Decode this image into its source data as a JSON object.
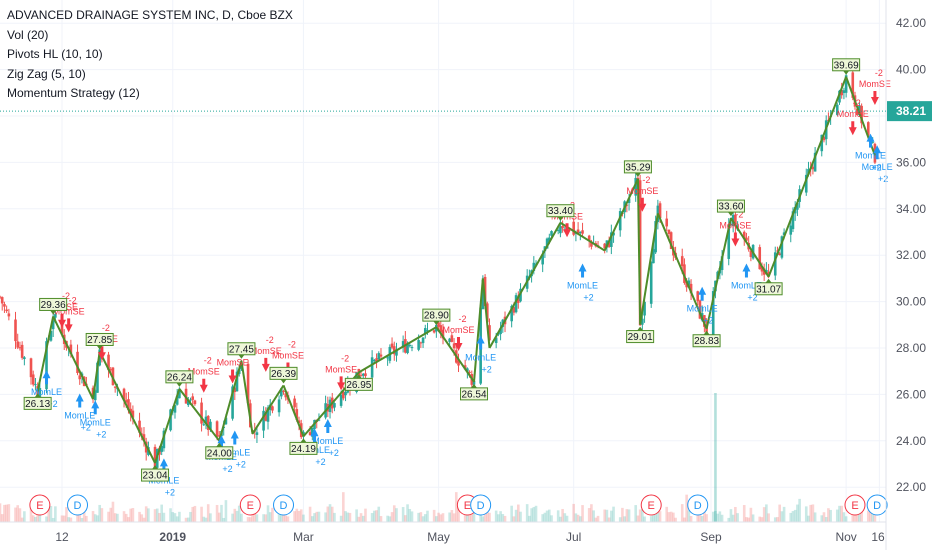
{
  "legend": {
    "title": "ADVANCED DRAINAGE SYSTEM INC, D, Cboe BZX",
    "studies": [
      "Vol (20)",
      "Pivots HL (10, 10)",
      "Zig Zag (5, 10)",
      "Momentum Strategy (12)"
    ]
  },
  "colors": {
    "up": "#26a69a",
    "down": "#ef5350",
    "zigzag": "#4e8c2a",
    "pivot_bg": "#eef7d8",
    "pivot_border": "#4e8c2a",
    "long": "#2196f3",
    "short": "#f23645",
    "price_line": "#26a69a",
    "axis_text": "#50535e",
    "grid": "#f0f3fa"
  },
  "chart_data": {
    "type": "candlestick",
    "symbol": "ADVANCED DRAINAGE SYSTEM INC",
    "interval": "D",
    "exchange": "Cboe BZX",
    "ylim": [
      20.5,
      43
    ],
    "y_ticks": [
      "22.00",
      "24.00",
      "26.00",
      "28.00",
      "30.00",
      "32.00",
      "34.00",
      "36.00",
      "38.00",
      "40.00",
      "42.00"
    ],
    "x_ticks": [
      "12",
      "2019",
      "Mar",
      "May",
      "Jul",
      "Sep",
      "Nov",
      "16"
    ],
    "last_price": "38.21",
    "zigzag": [
      {
        "date": "2018-11-01",
        "value": 26.13
      },
      {
        "date": "2018-11-08",
        "value": 29.36
      },
      {
        "date": "2018-11-26",
        "value": 25.8
      },
      {
        "date": "2018-11-29",
        "value": 27.85
      },
      {
        "date": "2018-12-24",
        "value": 23.04
      },
      {
        "date": "2019-01-04",
        "value": 26.24
      },
      {
        "date": "2019-01-22",
        "value": 24.0
      },
      {
        "date": "2019-02-01",
        "value": 27.45
      },
      {
        "date": "2019-02-06",
        "value": 24.3
      },
      {
        "date": "2019-02-20",
        "value": 26.39
      },
      {
        "date": "2019-03-01",
        "value": 24.19
      },
      {
        "date": "2019-03-26",
        "value": 26.95
      },
      {
        "date": "2019-04-30",
        "value": 28.9
      },
      {
        "date": "2019-05-17",
        "value": 26.54
      },
      {
        "date": "2019-05-21",
        "value": 31.0
      },
      {
        "date": "2019-05-24",
        "value": 28.0
      },
      {
        "date": "2019-06-25",
        "value": 33.4
      },
      {
        "date": "2019-07-15",
        "value": 32.2
      },
      {
        "date": "2019-07-30",
        "value": 35.29
      },
      {
        "date": "2019-07-31",
        "value": 29.01
      },
      {
        "date": "2019-08-08",
        "value": 33.8
      },
      {
        "date": "2019-08-30",
        "value": 28.83
      },
      {
        "date": "2019-09-10",
        "value": 33.6
      },
      {
        "date": "2019-09-27",
        "value": 31.07
      },
      {
        "date": "2019-11-01",
        "value": 39.69
      },
      {
        "date": "2019-11-14",
        "value": 36.3
      }
    ],
    "pivot_labels": [
      {
        "date": "2018-11-01",
        "value": 26.13,
        "text": "26.13",
        "pos": "below"
      },
      {
        "date": "2018-11-08",
        "value": 29.36,
        "text": "29.36",
        "pos": "above"
      },
      {
        "date": "2018-11-29",
        "value": 27.85,
        "text": "27.85",
        "pos": "above"
      },
      {
        "date": "2018-12-24",
        "value": 23.04,
        "text": "23.04",
        "pos": "below"
      },
      {
        "date": "2019-01-04",
        "value": 26.24,
        "text": "26.24",
        "pos": "above"
      },
      {
        "date": "2019-01-22",
        "value": 24.0,
        "text": "24.00",
        "pos": "below"
      },
      {
        "date": "2019-02-01",
        "value": 27.45,
        "text": "27.45",
        "pos": "above"
      },
      {
        "date": "2019-02-20",
        "value": 26.39,
        "text": "26.39",
        "pos": "above"
      },
      {
        "date": "2019-03-01",
        "value": 24.19,
        "text": "24.19",
        "pos": "below"
      },
      {
        "date": "2019-03-26",
        "value": 26.95,
        "text": "26.95",
        "pos": "below"
      },
      {
        "date": "2019-04-30",
        "value": 28.9,
        "text": "28.90",
        "pos": "above"
      },
      {
        "date": "2019-05-17",
        "value": 26.54,
        "text": "26.54",
        "pos": "below"
      },
      {
        "date": "2019-06-25",
        "value": 33.4,
        "text": "33.40",
        "pos": "above"
      },
      {
        "date": "2019-07-30",
        "value": 35.29,
        "text": "35.29",
        "pos": "above"
      },
      {
        "date": "2019-07-31",
        "value": 29.01,
        "text": "29.01",
        "pos": "below"
      },
      {
        "date": "2019-08-30",
        "value": 28.83,
        "text": "28.83",
        "pos": "below"
      },
      {
        "date": "2019-09-10",
        "value": 33.6,
        "text": "33.60",
        "pos": "above"
      },
      {
        "date": "2019-09-27",
        "value": 31.07,
        "text": "31.07",
        "pos": "below"
      },
      {
        "date": "2019-11-01",
        "value": 39.69,
        "text": "39.69",
        "pos": "above"
      }
    ],
    "signals": [
      {
        "type": "long",
        "date": "2018-11-05",
        "value": 27.3,
        "label": "MomLE",
        "qty": "+2"
      },
      {
        "type": "short",
        "date": "2018-11-12",
        "value": 28.7,
        "label": "MomSE",
        "qty": "-2"
      },
      {
        "type": "short",
        "date": "2018-11-15",
        "value": 28.5,
        "label": "MomSE",
        "qty": "-2"
      },
      {
        "type": "long",
        "date": "2018-11-20",
        "value": 26.3,
        "label": "MomLE",
        "qty": "+2"
      },
      {
        "type": "long",
        "date": "2018-11-27",
        "value": 26.0,
        "label": "MomLE",
        "qty": "+2"
      },
      {
        "type": "short",
        "date": "2018-11-30",
        "value": 27.3,
        "label": "MomSE",
        "qty": "-2"
      },
      {
        "type": "long",
        "date": "2018-12-28",
        "value": 23.5,
        "label": "MomLE",
        "qty": "+2"
      },
      {
        "type": "short",
        "date": "2019-01-15",
        "value": 25.9,
        "label": "MomSE",
        "qty": "-2"
      },
      {
        "type": "long",
        "date": "2019-01-23",
        "value": 24.5,
        "label": "MomLE",
        "qty": "+2"
      },
      {
        "type": "short",
        "date": "2019-01-28",
        "value": 26.3,
        "label": "MomSE",
        "qty": "-2"
      },
      {
        "type": "long",
        "date": "2019-01-29",
        "value": 24.7,
        "label": "MomLE",
        "qty": "+2"
      },
      {
        "type": "short",
        "date": "2019-02-12",
        "value": 26.8,
        "label": "MomSE",
        "qty": "-2"
      },
      {
        "type": "short",
        "date": "2019-02-22",
        "value": 26.6,
        "label": "MomSE",
        "qty": "-2"
      },
      {
        "type": "long",
        "date": "2019-03-06",
        "value": 24.8,
        "label": "MomLE",
        "qty": "+2"
      },
      {
        "type": "long",
        "date": "2019-03-12",
        "value": 25.2,
        "label": "MomLE",
        "qty": "+2"
      },
      {
        "type": "short",
        "date": "2019-03-18",
        "value": 26.0,
        "label": "MomSE",
        "qty": "-2"
      },
      {
        "type": "short",
        "date": "2019-05-10",
        "value": 27.7,
        "label": "MomSE",
        "qty": "-2"
      },
      {
        "type": "long",
        "date": "2019-05-20",
        "value": 28.8,
        "label": "MomLE",
        "qty": "+2"
      },
      {
        "type": "short",
        "date": "2019-06-28",
        "value": 32.6,
        "label": "MomSE",
        "qty": "-2"
      },
      {
        "type": "long",
        "date": "2019-07-05",
        "value": 31.9,
        "label": "MomLE",
        "qty": "+2"
      },
      {
        "type": "short",
        "date": "2019-08-01",
        "value": 33.7,
        "label": "MomSE",
        "qty": "-2"
      },
      {
        "type": "long",
        "date": "2019-08-28",
        "value": 30.9,
        "label": "MomLE",
        "qty": "+2"
      },
      {
        "type": "short",
        "date": "2019-09-12",
        "value": 32.2,
        "label": "MomSE",
        "qty": "-2"
      },
      {
        "type": "long",
        "date": "2019-09-17",
        "value": 31.9,
        "label": "MomLE",
        "qty": "+2"
      },
      {
        "type": "short",
        "date": "2019-11-04",
        "value": 37.0,
        "label": "MomSE",
        "qty": "-2"
      },
      {
        "type": "long",
        "date": "2019-11-12",
        "value": 37.5,
        "label": "MomLE",
        "qty": "+2"
      },
      {
        "type": "short",
        "date": "2019-11-14",
        "value": 38.3,
        "label": "MomSE",
        "qty": "-2"
      },
      {
        "type": "long",
        "date": "2019-11-15",
        "value": 37.0,
        "label": "MomLE",
        "qty": "+2"
      }
    ],
    "events": [
      {
        "kind": "E",
        "date": "2018-11-02"
      },
      {
        "kind": "D",
        "date": "2018-11-19"
      },
      {
        "kind": "E",
        "date": "2019-02-05"
      },
      {
        "kind": "D",
        "date": "2019-02-20"
      },
      {
        "kind": "E",
        "date": "2019-05-14"
      },
      {
        "kind": "D",
        "date": "2019-05-20"
      },
      {
        "kind": "E",
        "date": "2019-08-05"
      },
      {
        "kind": "D",
        "date": "2019-08-26"
      },
      {
        "kind": "E",
        "date": "2019-11-05"
      },
      {
        "kind": "D",
        "date": "2019-11-15"
      }
    ]
  }
}
